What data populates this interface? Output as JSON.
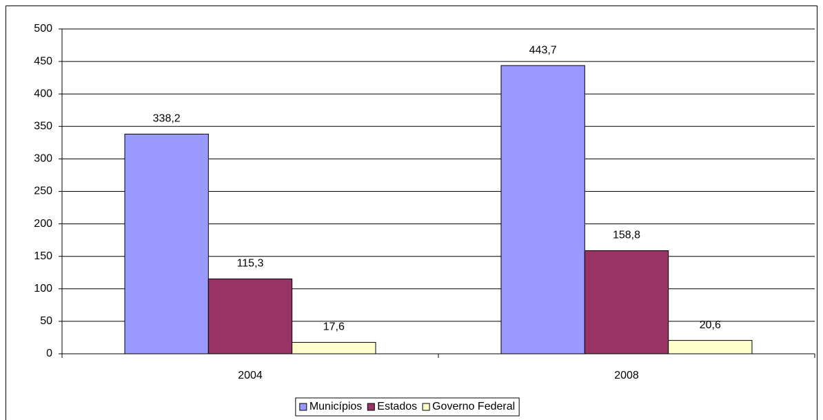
{
  "chart_data": {
    "type": "bar",
    "categories": [
      "2004",
      "2008"
    ],
    "series": [
      {
        "name": "Municípios",
        "color": "#9999ff",
        "values": [
          338.2,
          443.7
        ],
        "value_labels": [
          "338,2",
          "443,7"
        ]
      },
      {
        "name": "Estados",
        "color": "#993366",
        "values": [
          115.3,
          158.8
        ],
        "value_labels": [
          "115,3",
          "158,8"
        ]
      },
      {
        "name": "Governo Federal",
        "color": "#ffffcc",
        "values": [
          17.6,
          20.6
        ],
        "value_labels": [
          "17,6",
          "20,6"
        ]
      }
    ],
    "ylim": [
      0,
      500
    ],
    "yticks": [
      0,
      50,
      100,
      150,
      200,
      250,
      300,
      350,
      400,
      450,
      500
    ],
    "grid": true,
    "legend": "bottom"
  }
}
